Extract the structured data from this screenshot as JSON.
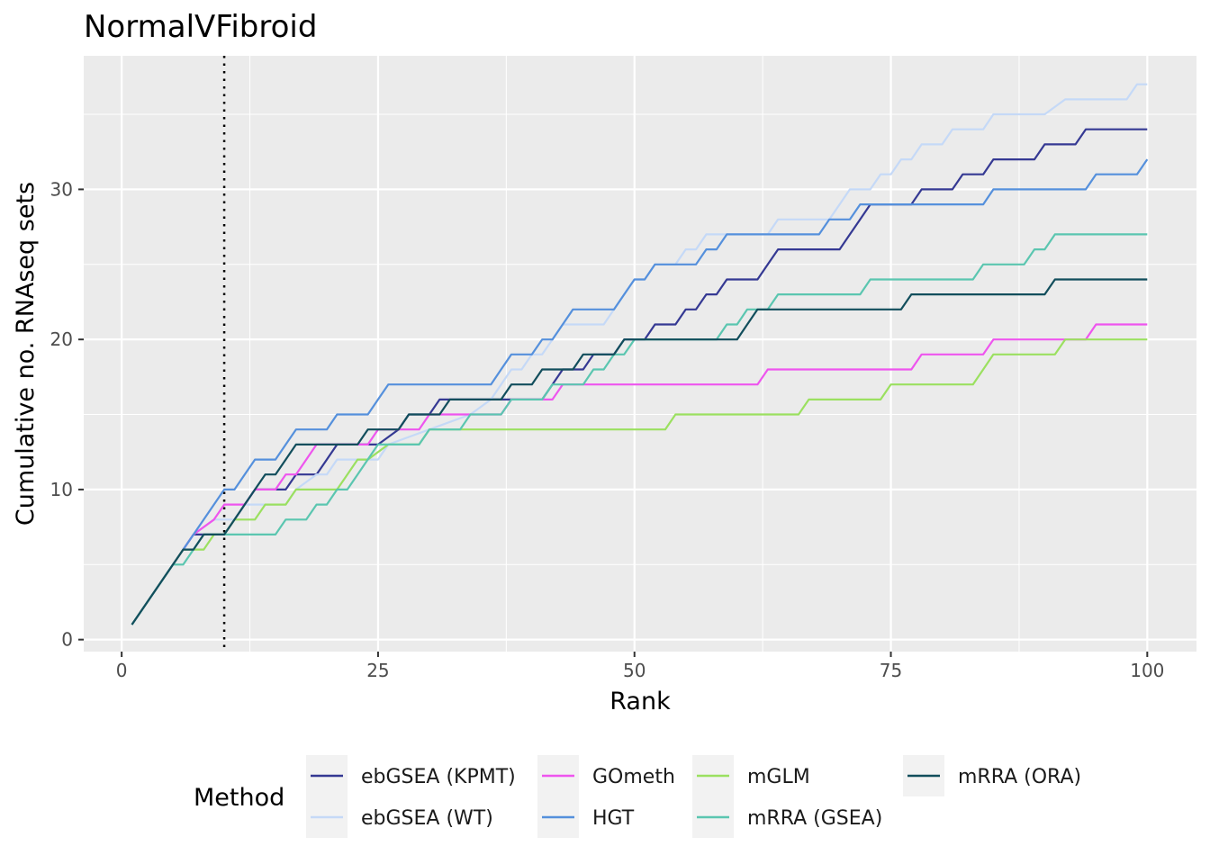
{
  "chart_data": {
    "type": "line",
    "title": "NormalVFibroid",
    "xlabel": "Rank",
    "ylabel": "Cumulative no. RNAseq sets",
    "xlim": [
      -3.7,
      104.8
    ],
    "ylim": [
      -0.8,
      38.9
    ],
    "x_ticks": [
      0,
      25,
      50,
      75,
      100
    ],
    "x_tick_labels": [
      "0",
      "25",
      "50",
      "75",
      "100"
    ],
    "y_ticks": [
      0,
      10,
      20,
      30
    ],
    "y_tick_labels": [
      "0",
      "10",
      "20",
      "30"
    ],
    "grid": true,
    "reference_line": {
      "x": 10,
      "style": "dotted"
    },
    "legend": {
      "title": "Method",
      "position": "bottom",
      "columns": [
        [
          "ebGSEA (KPMT)",
          "ebGSEA (WT)"
        ],
        [
          "GOmeth",
          "HGT"
        ],
        [
          "mGLM",
          "mRRA (GSEA)"
        ],
        [
          "mRRA (ORA)"
        ]
      ]
    },
    "series": [
      {
        "name": "ebGSEA (KPMT)",
        "color": "#353993",
        "points": [
          [
            1,
            1
          ],
          [
            5,
            5
          ],
          [
            6,
            6
          ],
          [
            7,
            7
          ],
          [
            10,
            7
          ],
          [
            11,
            8
          ],
          [
            12,
            9
          ],
          [
            13,
            10
          ],
          [
            16,
            10
          ],
          [
            17,
            11
          ],
          [
            19,
            11
          ],
          [
            20,
            12
          ],
          [
            21,
            13
          ],
          [
            25,
            13
          ],
          [
            27,
            14
          ],
          [
            28,
            15
          ],
          [
            29,
            15
          ],
          [
            30,
            15
          ],
          [
            31,
            16
          ],
          [
            41,
            16
          ],
          [
            42,
            17
          ],
          [
            43,
            18
          ],
          [
            45,
            18
          ],
          [
            46,
            19
          ],
          [
            48,
            19
          ],
          [
            49,
            20
          ],
          [
            51,
            20
          ],
          [
            52,
            21
          ],
          [
            54,
            21
          ],
          [
            55,
            22
          ],
          [
            56,
            22
          ],
          [
            57,
            23
          ],
          [
            58,
            23
          ],
          [
            59,
            24
          ],
          [
            62,
            24
          ],
          [
            63,
            25
          ],
          [
            64,
            26
          ],
          [
            70,
            26
          ],
          [
            71,
            27
          ],
          [
            72,
            28
          ],
          [
            73,
            29
          ],
          [
            77,
            29
          ],
          [
            78,
            30
          ],
          [
            81,
            30
          ],
          [
            82,
            31
          ],
          [
            84,
            31
          ],
          [
            85,
            32
          ],
          [
            89,
            32
          ],
          [
            90,
            33
          ],
          [
            93,
            33
          ],
          [
            94,
            34
          ],
          [
            100,
            34
          ]
        ]
      },
      {
        "name": "ebGSEA (WT)",
        "color": "#c5d9f7",
        "points": [
          [
            1,
            1
          ],
          [
            5,
            5
          ],
          [
            6,
            6
          ],
          [
            7,
            7
          ],
          [
            9,
            8
          ],
          [
            11,
            8
          ],
          [
            12,
            9
          ],
          [
            16,
            9
          ],
          [
            17,
            10
          ],
          [
            19,
            11
          ],
          [
            20,
            11
          ],
          [
            21,
            12
          ],
          [
            25,
            12
          ],
          [
            26,
            13
          ],
          [
            34,
            15
          ],
          [
            36,
            16
          ],
          [
            37,
            17
          ],
          [
            38,
            18
          ],
          [
            39,
            18
          ],
          [
            40,
            19
          ],
          [
            41,
            19
          ],
          [
            42,
            20
          ],
          [
            43,
            21
          ],
          [
            47,
            21
          ],
          [
            48,
            22
          ],
          [
            50,
            24
          ],
          [
            51,
            24
          ],
          [
            52,
            25
          ],
          [
            54,
            25
          ],
          [
            55,
            26
          ],
          [
            56,
            26
          ],
          [
            57,
            27
          ],
          [
            63,
            27
          ],
          [
            64,
            28
          ],
          [
            69,
            28
          ],
          [
            70,
            29
          ],
          [
            71,
            30
          ],
          [
            73,
            30
          ],
          [
            74,
            31
          ],
          [
            75,
            31
          ],
          [
            76,
            32
          ],
          [
            77,
            32
          ],
          [
            78,
            33
          ],
          [
            80,
            33
          ],
          [
            81,
            34
          ],
          [
            84,
            34
          ],
          [
            85,
            35
          ],
          [
            90,
            35
          ],
          [
            92,
            36
          ],
          [
            98,
            36
          ],
          [
            99,
            37
          ],
          [
            100,
            37
          ]
        ]
      },
      {
        "name": "GOmeth",
        "color": "#ee55ee",
        "points": [
          [
            1,
            1
          ],
          [
            6,
            6
          ],
          [
            7,
            7
          ],
          [
            9,
            8
          ],
          [
            10,
            9
          ],
          [
            12,
            9
          ],
          [
            13,
            10
          ],
          [
            15,
            10
          ],
          [
            16,
            11
          ],
          [
            17,
            11
          ],
          [
            18,
            12
          ],
          [
            19,
            13
          ],
          [
            24,
            13
          ],
          [
            25,
            14
          ],
          [
            29,
            14
          ],
          [
            30,
            15
          ],
          [
            37,
            15
          ],
          [
            38,
            16
          ],
          [
            42,
            16
          ],
          [
            43,
            17
          ],
          [
            62,
            17
          ],
          [
            63,
            18
          ],
          [
            77,
            18
          ],
          [
            78,
            19
          ],
          [
            84,
            19
          ],
          [
            85,
            20
          ],
          [
            94,
            20
          ],
          [
            95,
            21
          ],
          [
            100,
            21
          ]
        ]
      },
      {
        "name": "HGT",
        "color": "#5590dc",
        "points": [
          [
            1,
            1
          ],
          [
            10,
            10
          ],
          [
            11,
            10
          ],
          [
            12,
            11
          ],
          [
            13,
            12
          ],
          [
            15,
            12
          ],
          [
            16,
            13
          ],
          [
            17,
            14
          ],
          [
            20,
            14
          ],
          [
            21,
            15
          ],
          [
            24,
            15
          ],
          [
            25,
            16
          ],
          [
            26,
            17
          ],
          [
            36,
            17
          ],
          [
            37,
            18
          ],
          [
            38,
            19
          ],
          [
            40,
            19
          ],
          [
            41,
            20
          ],
          [
            42,
            20
          ],
          [
            43,
            21
          ],
          [
            44,
            22
          ],
          [
            48,
            22
          ],
          [
            49,
            23
          ],
          [
            50,
            24
          ],
          [
            51,
            24
          ],
          [
            52,
            25
          ],
          [
            56,
            25
          ],
          [
            57,
            26
          ],
          [
            58,
            26
          ],
          [
            59,
            27
          ],
          [
            68,
            27
          ],
          [
            69,
            28
          ],
          [
            71,
            28
          ],
          [
            72,
            29
          ],
          [
            84,
            29
          ],
          [
            85,
            30
          ],
          [
            92,
            30
          ],
          [
            94,
            30
          ],
          [
            95,
            31
          ],
          [
            99,
            31
          ],
          [
            100,
            32
          ]
        ]
      },
      {
        "name": "mGLM",
        "color": "#9be060",
        "points": [
          [
            1,
            1
          ],
          [
            6,
            6
          ],
          [
            8,
            6
          ],
          [
            9,
            7
          ],
          [
            10,
            7
          ],
          [
            11,
            8
          ],
          [
            13,
            8
          ],
          [
            14,
            9
          ],
          [
            16,
            9
          ],
          [
            17,
            10
          ],
          [
            21,
            10
          ],
          [
            23,
            12
          ],
          [
            24,
            12
          ],
          [
            26,
            13
          ],
          [
            29,
            13
          ],
          [
            30,
            14
          ],
          [
            53,
            14
          ],
          [
            54,
            15
          ],
          [
            66,
            15
          ],
          [
            67,
            16
          ],
          [
            74,
            16
          ],
          [
            75,
            17
          ],
          [
            83,
            17
          ],
          [
            84,
            18
          ],
          [
            85,
            19
          ],
          [
            91,
            19
          ],
          [
            92,
            20
          ],
          [
            100,
            20
          ]
        ]
      },
      {
        "name": "mRRA (GSEA)",
        "color": "#5bc6b0",
        "points": [
          [
            1,
            1
          ],
          [
            5,
            5
          ],
          [
            6,
            5
          ],
          [
            7,
            6
          ],
          [
            8,
            7
          ],
          [
            14,
            7
          ],
          [
            15,
            7
          ],
          [
            16,
            8
          ],
          [
            18,
            8
          ],
          [
            19,
            9
          ],
          [
            20,
            9
          ],
          [
            21,
            10
          ],
          [
            22,
            10
          ],
          [
            23,
            11
          ],
          [
            25,
            13
          ],
          [
            29,
            13
          ],
          [
            30,
            14
          ],
          [
            33,
            14
          ],
          [
            34,
            15
          ],
          [
            37,
            15
          ],
          [
            38,
            16
          ],
          [
            41,
            16
          ],
          [
            42,
            17
          ],
          [
            45,
            17
          ],
          [
            46,
            18
          ],
          [
            47,
            18
          ],
          [
            48,
            19
          ],
          [
            49,
            19
          ],
          [
            50,
            20
          ],
          [
            58,
            20
          ],
          [
            59,
            21
          ],
          [
            60,
            21
          ],
          [
            61,
            22
          ],
          [
            62,
            22
          ],
          [
            63,
            22
          ],
          [
            64,
            23
          ],
          [
            72,
            23
          ],
          [
            73,
            24
          ],
          [
            83,
            24
          ],
          [
            84,
            25
          ],
          [
            88,
            25
          ],
          [
            89,
            26
          ],
          [
            90,
            26
          ],
          [
            91,
            27
          ],
          [
            100,
            27
          ]
        ]
      },
      {
        "name": "mRRA (ORA)",
        "color": "#124e5c",
        "points": [
          [
            1,
            1
          ],
          [
            6,
            6
          ],
          [
            7,
            6
          ],
          [
            8,
            7
          ],
          [
            10,
            7
          ],
          [
            11,
            8
          ],
          [
            12,
            9
          ],
          [
            13,
            10
          ],
          [
            14,
            11
          ],
          [
            15,
            11
          ],
          [
            16,
            12
          ],
          [
            17,
            13
          ],
          [
            23,
            13
          ],
          [
            24,
            14
          ],
          [
            27,
            14
          ],
          [
            28,
            15
          ],
          [
            31,
            15
          ],
          [
            32,
            16
          ],
          [
            37,
            16
          ],
          [
            38,
            17
          ],
          [
            40,
            17
          ],
          [
            41,
            18
          ],
          [
            44,
            18
          ],
          [
            45,
            19
          ],
          [
            47,
            19
          ],
          [
            48,
            19
          ],
          [
            49,
            20
          ],
          [
            60,
            20
          ],
          [
            61,
            21
          ],
          [
            62,
            22
          ],
          [
            76,
            22
          ],
          [
            77,
            23
          ],
          [
            90,
            23
          ],
          [
            91,
            24
          ],
          [
            100,
            24
          ]
        ]
      }
    ]
  }
}
